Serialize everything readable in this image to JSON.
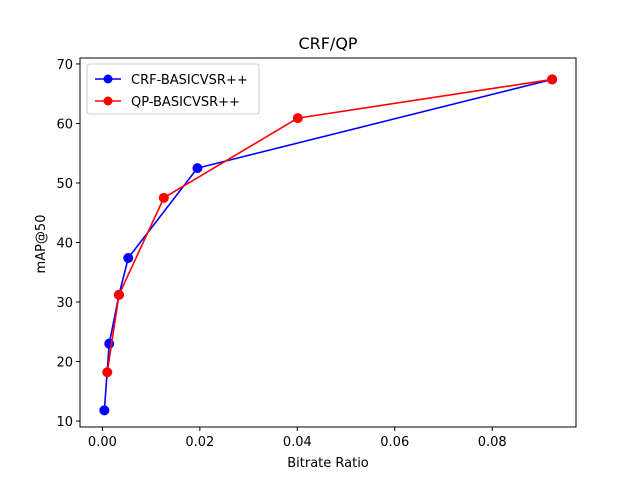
{
  "chart_data": {
    "type": "line",
    "title": "CRF/QP",
    "xlabel": "Bitrate Ratio",
    "ylabel": "mAP@50",
    "xlim": [
      -0.0046,
      0.0972
    ],
    "ylim": [
      9,
      71
    ],
    "xticks": [
      0.0,
      0.02,
      0.04,
      0.06,
      0.08
    ],
    "xtick_labels": [
      "0.00",
      "0.02",
      "0.04",
      "0.06",
      "0.08"
    ],
    "yticks": [
      10,
      20,
      30,
      40,
      50,
      60,
      70
    ],
    "ytick_labels": [
      "10",
      "20",
      "30",
      "40",
      "50",
      "60",
      "70"
    ],
    "grid": false,
    "legend_position": "top-left",
    "series": [
      {
        "name": "CRF-BASICVSR++",
        "color": "#0000ff",
        "marker": "circle",
        "x": [
          0.0004,
          0.0014,
          0.0034,
          0.0053,
          0.0195,
          0.0923
        ],
        "y": [
          11.8,
          23.0,
          31.2,
          37.4,
          52.5,
          67.4
        ]
      },
      {
        "name": "QP-BASICVSR++",
        "color": "#ff0000",
        "marker": "circle",
        "x": [
          0.001,
          0.0034,
          0.0126,
          0.0401,
          0.0923
        ],
        "y": [
          18.2,
          31.2,
          47.5,
          60.9,
          67.4
        ]
      }
    ]
  }
}
